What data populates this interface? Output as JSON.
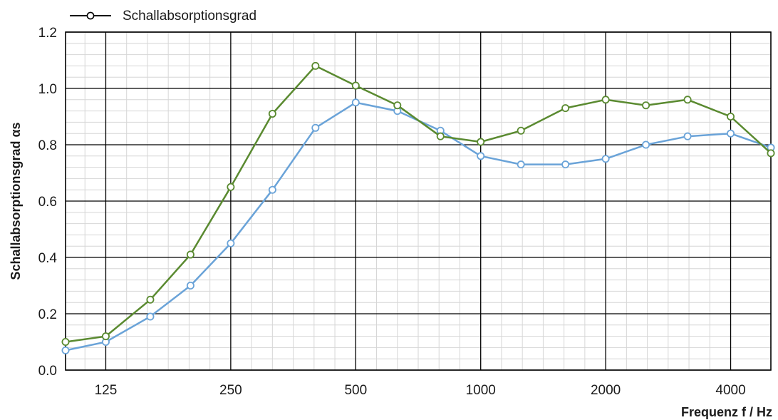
{
  "chart_data": {
    "type": "line",
    "xlabel": "Frequenz f / Hz",
    "ylabel": "Schallabsorptionsgrad αs",
    "x_scale": "log",
    "xlim": [
      100,
      5000
    ],
    "ylim": [
      0,
      1.2
    ],
    "x_tick_labels": [
      "125",
      "250",
      "500",
      "1000",
      "2000",
      "4000"
    ],
    "x_tick_values": [
      125,
      250,
      500,
      1000,
      2000,
      4000
    ],
    "y_tick_labels": [
      "0.0",
      "0.2",
      "0.4",
      "0.6",
      "0.8",
      "1.0",
      "1.2"
    ],
    "y_tick_values": [
      0,
      0.2,
      0.4,
      0.6,
      0.8,
      1.0,
      1.2
    ],
    "grid": true,
    "legend_position": "top-left",
    "x": [
      100,
      125,
      160,
      200,
      250,
      315,
      400,
      500,
      630,
      800,
      1000,
      1250,
      1600,
      2000,
      2500,
      3150,
      4000,
      5000
    ],
    "series": [
      {
        "name": "Schallabsorptionsgrad",
        "color": "#5a8a30",
        "values": [
          0.1,
          0.12,
          0.25,
          0.41,
          0.65,
          0.91,
          1.08,
          1.01,
          0.94,
          0.83,
          0.81,
          0.85,
          0.93,
          0.96,
          0.94,
          0.96,
          0.9,
          0.77
        ]
      },
      {
        "name": "",
        "color": "#6aa3d8",
        "values": [
          0.07,
          0.1,
          0.19,
          0.3,
          0.45,
          0.64,
          0.86,
          0.95,
          0.92,
          0.85,
          0.76,
          0.73,
          0.73,
          0.75,
          0.8,
          0.83,
          0.84,
          0.79
        ]
      }
    ]
  }
}
